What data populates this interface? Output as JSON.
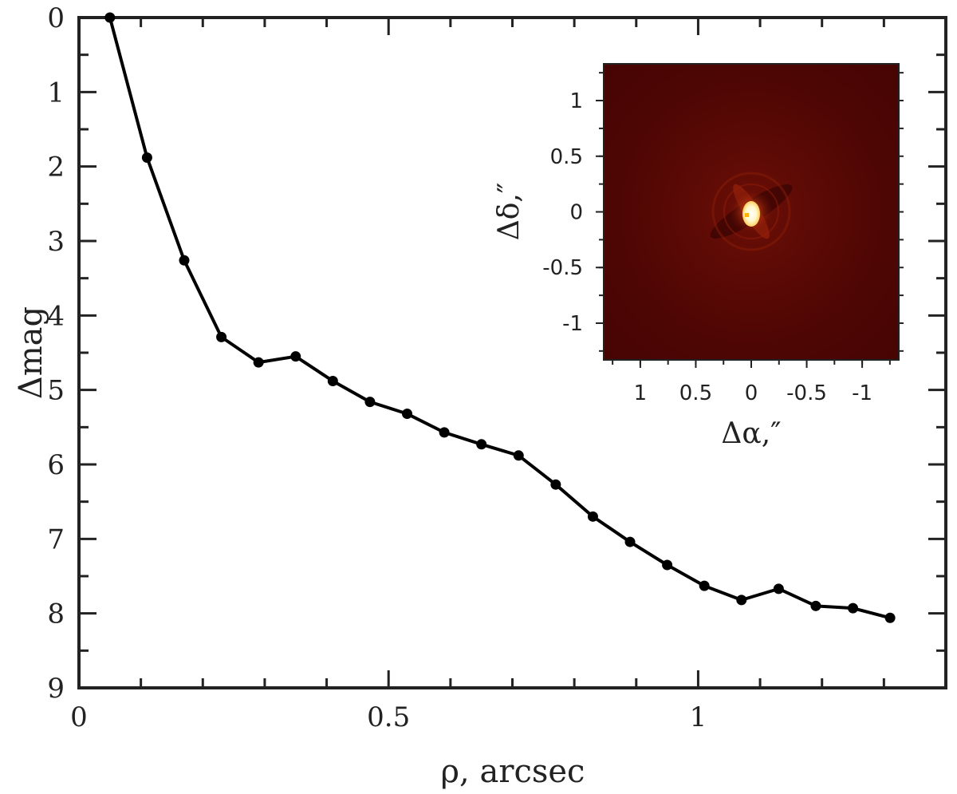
{
  "chart_data": [
    {
      "type": "line",
      "xlabel": "ρ, arcsec",
      "ylabel": "Δmag",
      "xlim": [
        0,
        1.4
      ],
      "ylim": [
        0,
        9
      ],
      "y_inverted": true,
      "grid": false,
      "x_ticks": [
        {
          "value": 0,
          "label": "0"
        },
        {
          "value": 0.5,
          "label": "0.5"
        },
        {
          "value": 1,
          "label": "1"
        }
      ],
      "y_ticks": [
        {
          "value": 0,
          "label": "0"
        },
        {
          "value": 1,
          "label": "1"
        },
        {
          "value": 2,
          "label": "2"
        },
        {
          "value": 3,
          "label": "3"
        },
        {
          "value": 4,
          "label": "4"
        },
        {
          "value": 5,
          "label": "5"
        },
        {
          "value": 6,
          "label": "6"
        },
        {
          "value": 7,
          "label": "7"
        },
        {
          "value": 8,
          "label": "8"
        },
        {
          "value": 9,
          "label": "9"
        }
      ],
      "series": [
        {
          "color": "#000000",
          "marker": "circle",
          "x": [
            0.05,
            0.11,
            0.17,
            0.23,
            0.29,
            0.35,
            0.41,
            0.47,
            0.53,
            0.59,
            0.65,
            0.71,
            0.77,
            0.83,
            0.89,
            0.95,
            1.01,
            1.07,
            1.13,
            1.19,
            1.25,
            1.31
          ],
          "y": [
            0.0,
            1.88,
            3.26,
            4.29,
            4.63,
            4.55,
            4.88,
            5.16,
            5.32,
            5.57,
            5.73,
            5.88,
            6.27,
            6.7,
            7.04,
            7.35,
            7.63,
            7.82,
            7.67,
            7.9,
            7.93,
            8.06
          ]
        }
      ]
    },
    {
      "type": "heatmap",
      "xlabel": "Δα,″",
      "ylabel": "Δδ,″",
      "xlim": [
        1.33,
        -1.33
      ],
      "ylim": [
        -1.33,
        1.33
      ],
      "x_ticks": [
        {
          "value": 1,
          "label": "1"
        },
        {
          "value": 0.5,
          "label": "0.5"
        },
        {
          "value": 0,
          "label": "0"
        },
        {
          "value": -0.5,
          "label": "-0.5"
        },
        {
          "value": -1,
          "label": "-1"
        }
      ],
      "y_ticks": [
        {
          "value": 1,
          "label": "1"
        },
        {
          "value": 0.5,
          "label": "0.5"
        },
        {
          "value": 0,
          "label": "0"
        },
        {
          "value": -0.5,
          "label": "-0.5"
        },
        {
          "value": -1,
          "label": "-1"
        }
      ],
      "colormap": [
        "#4a0503",
        "#7a1208",
        "#c03a10",
        "#ffb030",
        "#ffffff"
      ],
      "source_offset": [
        0,
        0
      ]
    }
  ]
}
